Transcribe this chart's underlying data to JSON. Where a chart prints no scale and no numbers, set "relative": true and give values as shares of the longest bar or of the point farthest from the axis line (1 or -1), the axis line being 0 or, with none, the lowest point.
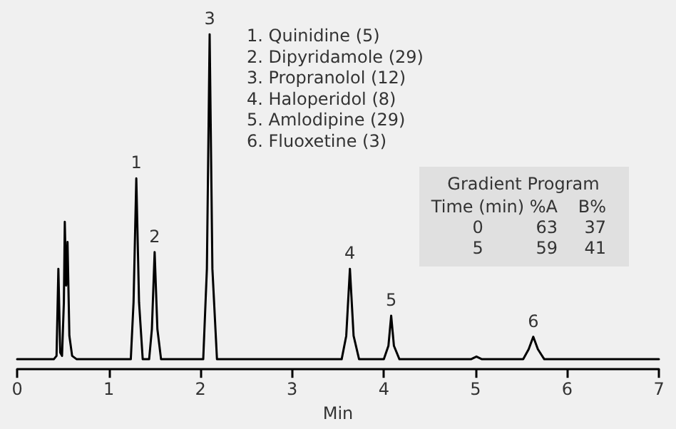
{
  "chart_data": {
    "type": "line",
    "relative": true,
    "xlabel": "Min",
    "xlim": [
      0,
      7
    ],
    "xticks": [
      0,
      1,
      2,
      3,
      4,
      5,
      6,
      7
    ],
    "grid": false,
    "marker": "none",
    "line_style": "solid",
    "series": [
      {
        "color": "#000000",
        "x": [
          0,
          0.4,
          0.43,
          0.45,
          0.47,
          0.49,
          0.51,
          0.52,
          0.535,
          0.55,
          0.57,
          0.6,
          0.65,
          1.0,
          1.24,
          1.27,
          1.3,
          1.33,
          1.37,
          1.44,
          1.47,
          1.5,
          1.53,
          1.57,
          2.03,
          2.07,
          2.1,
          2.13,
          2.18,
          3.54,
          3.59,
          3.63,
          3.67,
          3.73,
          4.0,
          4.05,
          4.08,
          4.11,
          4.17,
          4.95,
          5.01,
          5.07,
          5.52,
          5.58,
          5.63,
          5.68,
          5.75,
          7
        ],
        "values": [
          0.03,
          0.03,
          0.04,
          0.3,
          0.05,
          0.04,
          0.2,
          0.44,
          0.25,
          0.38,
          0.1,
          0.04,
          0.03,
          0.03,
          0.03,
          0.2,
          0.57,
          0.2,
          0.03,
          0.03,
          0.12,
          0.35,
          0.12,
          0.03,
          0.03,
          0.3,
          1,
          0.3,
          0.03,
          0.03,
          0.1,
          0.3,
          0.1,
          0.03,
          0.03,
          0.07,
          0.16,
          0.07,
          0.03,
          0.03,
          0.038,
          0.03,
          0.03,
          0.06,
          0.097,
          0.06,
          0.03,
          0.03
        ]
      }
    ],
    "annotations": [
      {
        "text": "1",
        "x": 1.3,
        "y": 0.57
      },
      {
        "text": "2",
        "x": 1.5,
        "y": 0.35
      },
      {
        "text": "3",
        "x": 2.1,
        "y": 1
      },
      {
        "text": "4",
        "x": 3.63,
        "y": 0.3
      },
      {
        "text": "5",
        "x": 4.08,
        "y": 0.16
      },
      {
        "text": "6",
        "x": 5.63,
        "y": 0.097
      },
      "1. Quinidine (5)",
      "2. Dipyridamole (29)",
      "3. Propranolol (12)",
      "4. Haloperidol (8)",
      "5. Amlodipine (29)",
      "6. Fluoxetine (3)",
      "Gradient Program",
      "Time (min)\t%A\tB%",
      "0\t63\t37",
      "5\t59\t41"
    ]
  }
}
